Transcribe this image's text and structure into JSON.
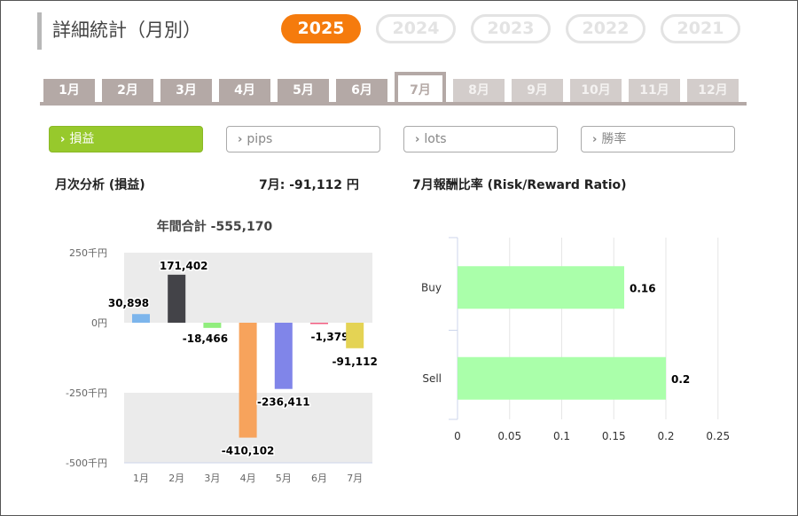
{
  "page": {
    "title": "詳細統計（月別）"
  },
  "years": [
    {
      "label": "2025",
      "active": true
    },
    {
      "label": "2024",
      "active": false
    },
    {
      "label": "2023",
      "active": false
    },
    {
      "label": "2022",
      "active": false
    },
    {
      "label": "2021",
      "active": false
    }
  ],
  "months": [
    {
      "label": "1月",
      "state": "past"
    },
    {
      "label": "2月",
      "state": "past"
    },
    {
      "label": "3月",
      "state": "past"
    },
    {
      "label": "4月",
      "state": "past"
    },
    {
      "label": "5月",
      "state": "past"
    },
    {
      "label": "6月",
      "state": "past"
    },
    {
      "label": "7月",
      "state": "active"
    },
    {
      "label": "8月",
      "state": "future"
    },
    {
      "label": "9月",
      "state": "future"
    },
    {
      "label": "10月",
      "state": "future"
    },
    {
      "label": "11月",
      "state": "future"
    },
    {
      "label": "12月",
      "state": "future"
    }
  ],
  "filters": [
    {
      "label": "損益",
      "active": true
    },
    {
      "label": "pips",
      "active": false
    },
    {
      "label": "lots",
      "active": false
    },
    {
      "label": "勝率",
      "active": false
    }
  ],
  "filter_chevron": "›",
  "left_panel": {
    "heading": "月次分析 (損益)",
    "month_summary": "7月:  -91,112 円"
  },
  "right_panel": {
    "heading": "7月報酬比率 (Risk/Reward Ratio)"
  },
  "colors": {
    "accent_orange": "#f57b0d",
    "accent_green": "#97c92c",
    "tab_gray": "#b4a9a6"
  },
  "chart_data": [
    {
      "type": "bar",
      "title": "年間合計 -555,170",
      "categories": [
        "1月",
        "2月",
        "3月",
        "4月",
        "5月",
        "6月",
        "7月"
      ],
      "values": [
        30898,
        171402,
        -18466,
        -410102,
        -236411,
        -1379,
        -91112
      ],
      "data_labels": [
        "30,898",
        "171,402",
        "-18,466",
        "-410,102",
        "-236,411",
        "-1,379",
        "-91,112"
      ],
      "bar_colors": [
        "#7cb5ec",
        "#434348",
        "#90ed7d",
        "#f7a35c",
        "#8085e9",
        "#f15c80",
        "#e4d354"
      ],
      "ylim": [
        -500000,
        250000
      ],
      "yticks": [
        250000,
        0,
        -250000,
        -500000
      ],
      "ytick_labels": [
        "250千円",
        "0円",
        "-250千円",
        "-500千円"
      ],
      "plot_band_colors": [
        "#ebebeb",
        "#ffffff",
        "#ebebeb"
      ],
      "grid": false,
      "xlabel": "",
      "ylabel": ""
    },
    {
      "type": "bar",
      "orientation": "horizontal",
      "categories": [
        "Buy",
        "Sell"
      ],
      "values": [
        0.16,
        0.2
      ],
      "data_labels": [
        "0.16",
        "0.2"
      ],
      "bar_color": "#aaffaa",
      "xlim": [
        0,
        0.25
      ],
      "xticks": [
        0,
        0.05,
        0.1,
        0.15,
        0.2,
        0.25
      ],
      "xtick_labels": [
        "0",
        "0.05",
        "0.1",
        "0.15",
        "0.2",
        "0.25"
      ],
      "grid": true,
      "xlabel": "",
      "ylabel": ""
    }
  ]
}
